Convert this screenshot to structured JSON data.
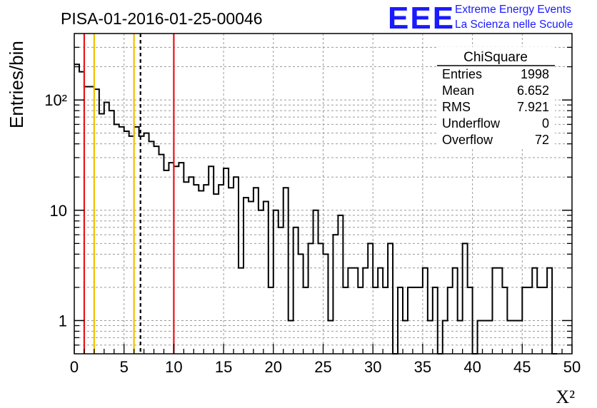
{
  "chart_data": {
    "type": "histogram",
    "title": "PISA-01-2016-01-25-00046",
    "xlabel": "X²",
    "ylabel": "Entries/bin",
    "xlim": [
      0,
      50
    ],
    "ylim": [
      0.5,
      400
    ],
    "log_y": true,
    "grid": true,
    "bin_width": 0.5,
    "x_ticks": [
      "0",
      "5",
      "10",
      "15",
      "20",
      "25",
      "30",
      "35",
      "40",
      "45",
      "50"
    ],
    "y_ticks": [
      {
        "value": 1,
        "label": "1"
      },
      {
        "value": 10,
        "label": "10"
      },
      {
        "value": 100,
        "label": "10²"
      }
    ],
    "values": [
      210,
      180,
      132,
      132,
      125,
      75,
      95,
      80,
      60,
      57,
      52,
      47,
      57,
      47,
      50,
      42,
      38,
      32,
      23,
      27,
      25,
      27,
      18,
      20,
      17,
      15,
      17,
      25,
      14,
      17,
      24,
      16,
      20,
      3,
      13,
      12,
      16,
      10,
      12,
      2,
      10,
      7,
      16,
      1,
      7,
      4,
      2,
      5,
      10,
      5,
      4,
      1,
      6,
      9,
      2,
      3,
      3,
      2,
      3,
      5,
      2,
      3,
      2,
      5,
      0,
      2,
      1,
      2,
      2,
      2,
      3,
      1,
      2,
      0,
      1,
      2,
      3,
      1,
      5,
      2,
      0,
      1,
      1,
      1,
      3,
      3,
      2,
      1,
      1,
      1,
      2,
      2,
      3,
      2,
      2,
      3,
      0
    ],
    "vertical_lines": [
      {
        "x": 1,
        "color": "#e8141c",
        "style": "solid"
      },
      {
        "x": 2,
        "color": "#f0c000",
        "style": "solid"
      },
      {
        "x": 6,
        "color": "#f0c000",
        "style": "solid"
      },
      {
        "x": 6.652,
        "color": "#000000",
        "style": "dashed"
      },
      {
        "x": 10,
        "color": "#e8141c",
        "style": "solid"
      }
    ],
    "stats": {
      "name": "ChiSquare",
      "rows": [
        {
          "label": "Entries",
          "value": "1998"
        },
        {
          "label": "Mean",
          "value": "6.652"
        },
        {
          "label": "RMS",
          "value": "7.921"
        },
        {
          "label": "Underflow",
          "value": "0"
        },
        {
          "label": "Overflow",
          "value": "72"
        }
      ]
    }
  },
  "logo": {
    "mark": "EEE",
    "line1": "Extreme Energy Events",
    "line2": "La Scienza nelle Scuole",
    "color": "#1a1aff"
  }
}
